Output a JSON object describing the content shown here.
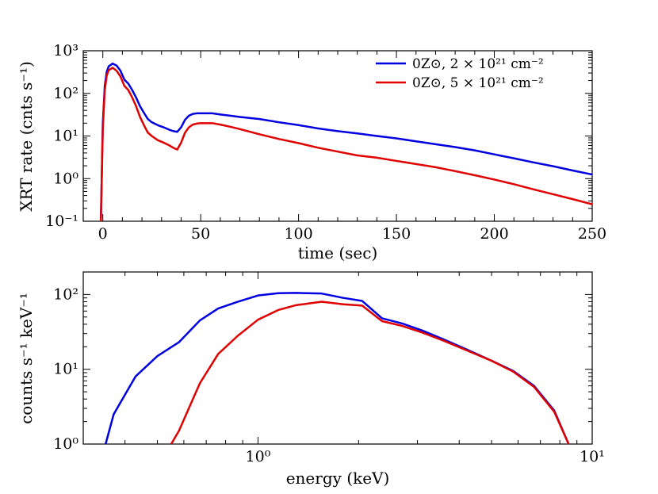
{
  "chart_data": [
    {
      "type": "line",
      "xscale": "linear",
      "yscale": "log",
      "xlabel": "time (sec)",
      "ylabel": "XRT rate (cnts s⁻¹)",
      "xlim": [
        -10,
        250
      ],
      "ylim": [
        0.1,
        1000
      ],
      "xticks": [
        0,
        50,
        100,
        150,
        200,
        250
      ],
      "xtick_labels": [
        "0",
        "50",
        "100",
        "150",
        "200",
        "250"
      ],
      "yticks": [
        0.1,
        1,
        10,
        100,
        1000
      ],
      "ytick_labels": [
        "10⁻¹",
        "10⁰",
        "10¹",
        "10²",
        "10³"
      ],
      "legend_position": "top-right",
      "series": [
        {
          "name": "0Z⊙, 2 × 10²¹ cm⁻²",
          "color": "#0000e0",
          "x": [
            -1,
            0,
            1,
            2,
            3,
            5,
            7,
            9,
            11,
            13,
            15,
            17,
            19,
            21,
            23,
            25,
            28,
            31,
            34,
            36,
            38,
            40,
            42,
            44,
            46,
            48,
            50,
            53,
            56,
            60,
            65,
            70,
            80,
            90,
            100,
            110,
            120,
            130,
            140,
            150,
            160,
            170,
            180,
            190,
            200,
            210,
            220,
            230,
            240,
            250
          ],
          "y": [
            0.1,
            20,
            150,
            320,
            430,
            500,
            450,
            340,
            210,
            170,
            120,
            80,
            50,
            35,
            25,
            21,
            18,
            16,
            14,
            13,
            12.5,
            16,
            24,
            30,
            33,
            34,
            34,
            34,
            34,
            32,
            30,
            28,
            25,
            21,
            18,
            15,
            13,
            11.5,
            10,
            8.8,
            7.5,
            6.4,
            5.5,
            4.6,
            3.7,
            3.0,
            2.4,
            1.95,
            1.55,
            1.25
          ]
        },
        {
          "name": "0Z⊙, 5 × 10²¹ cm⁻²",
          "color": "#e00000",
          "x": [
            -1,
            0,
            1,
            2,
            3,
            5,
            7,
            9,
            11,
            13,
            15,
            17,
            19,
            21,
            23,
            25,
            28,
            31,
            34,
            36,
            38,
            40,
            42,
            44,
            46,
            48,
            50,
            53,
            56,
            60,
            65,
            70,
            80,
            90,
            100,
            110,
            120,
            130,
            140,
            150,
            160,
            170,
            180,
            190,
            200,
            210,
            220,
            230,
            240,
            250
          ],
          "y": [
            0.1,
            15,
            120,
            260,
            350,
            400,
            340,
            250,
            150,
            120,
            80,
            50,
            28,
            18,
            12,
            10,
            8,
            7,
            6,
            5.3,
            4.8,
            7,
            12,
            16,
            18.5,
            19.5,
            20,
            20,
            20,
            18.5,
            16.5,
            14.5,
            11,
            8.5,
            6.8,
            5.3,
            4.3,
            3.5,
            3.1,
            2.6,
            2.2,
            1.85,
            1.5,
            1.2,
            0.95,
            0.74,
            0.56,
            0.43,
            0.33,
            0.25
          ]
        }
      ]
    },
    {
      "type": "line",
      "xscale": "log",
      "yscale": "log",
      "xlabel": "energy (keV)",
      "ylabel": "counts s⁻¹ keV⁻¹",
      "xlim": [
        0.3,
        10
      ],
      "ylim": [
        1,
        200
      ],
      "xticks": [
        1,
        10
      ],
      "xtick_labels": [
        "10⁰",
        "10¹"
      ],
      "yticks": [
        1,
        10,
        100
      ],
      "ytick_labels": [
        "10⁰",
        "10¹",
        "10²"
      ],
      "series": [
        {
          "name": "0Z⊙, 2 × 10²¹ cm⁻²",
          "color": "#0000e0",
          "x": [
            0.35,
            0.37,
            0.43,
            0.5,
            0.58,
            0.67,
            0.76,
            0.87,
            1.0,
            1.15,
            1.3,
            1.55,
            1.8,
            2.05,
            2.35,
            2.7,
            3.1,
            3.6,
            4.2,
            5.0,
            5.8,
            6.7,
            7.7,
            8.5
          ],
          "y": [
            1.0,
            2.5,
            8,
            15,
            23,
            45,
            65,
            80,
            97,
            104,
            105,
            103,
            90,
            82,
            48,
            41,
            33,
            25,
            18.5,
            13,
            9.5,
            6.0,
            2.8,
            1.0
          ]
        },
        {
          "name": "0Z⊙, 5 × 10²¹ cm⁻²",
          "color": "#e00000",
          "x": [
            0.55,
            0.58,
            0.67,
            0.76,
            0.87,
            1.0,
            1.15,
            1.3,
            1.55,
            1.8,
            2.05,
            2.35,
            2.7,
            3.1,
            3.6,
            4.2,
            5.0,
            5.8,
            6.7,
            7.7,
            8.5
          ],
          "y": [
            1.0,
            1.5,
            6.5,
            16,
            28,
            46,
            62,
            72,
            80,
            74,
            71,
            44,
            38,
            31,
            24,
            18,
            13,
            9.3,
            5.8,
            2.7,
            1.0
          ]
        }
      ]
    }
  ],
  "legend": {
    "entries": [
      {
        "label": "0Z⊙, 2 × 10²¹ cm⁻²",
        "color": "#0000e0"
      },
      {
        "label": "0Z⊙, 5 × 10²¹ cm⁻²",
        "color": "#e00000"
      }
    ]
  }
}
